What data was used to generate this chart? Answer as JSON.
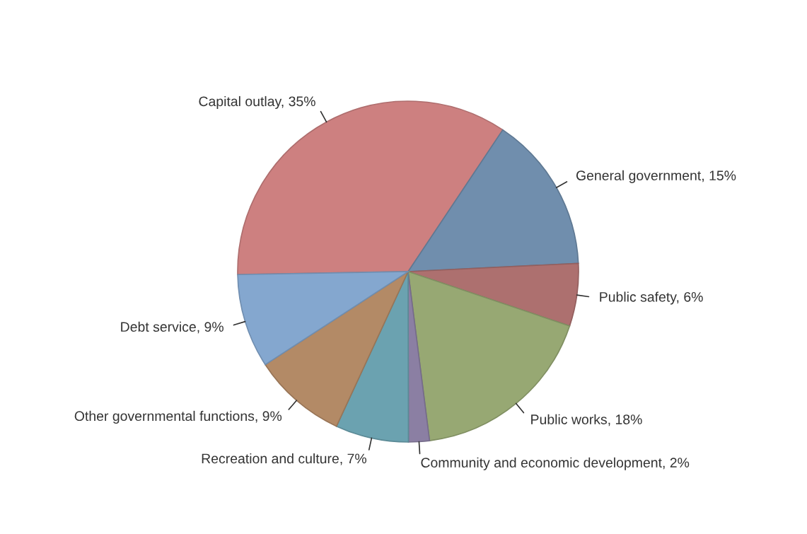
{
  "chart_data": {
    "type": "pie",
    "categories": [
      "Capital outlay",
      "General government",
      "Public safety",
      "Public works",
      "Community and economic development",
      "Recreation and culture",
      "Other governmental functions",
      "Debt service"
    ],
    "values": [
      35,
      15,
      6,
      18,
      2,
      7,
      9,
      9
    ],
    "value_labels": [
      "35%",
      "15%",
      "6%",
      "18%",
      "2%",
      "7%",
      "9%",
      "9%"
    ],
    "colors": [
      "#cd8080",
      "#708ead",
      "#ad706f",
      "#97a873",
      "#8b7fa3",
      "#6ba2b0",
      "#b38a66",
      "#84a7cf"
    ],
    "legend": false
  }
}
